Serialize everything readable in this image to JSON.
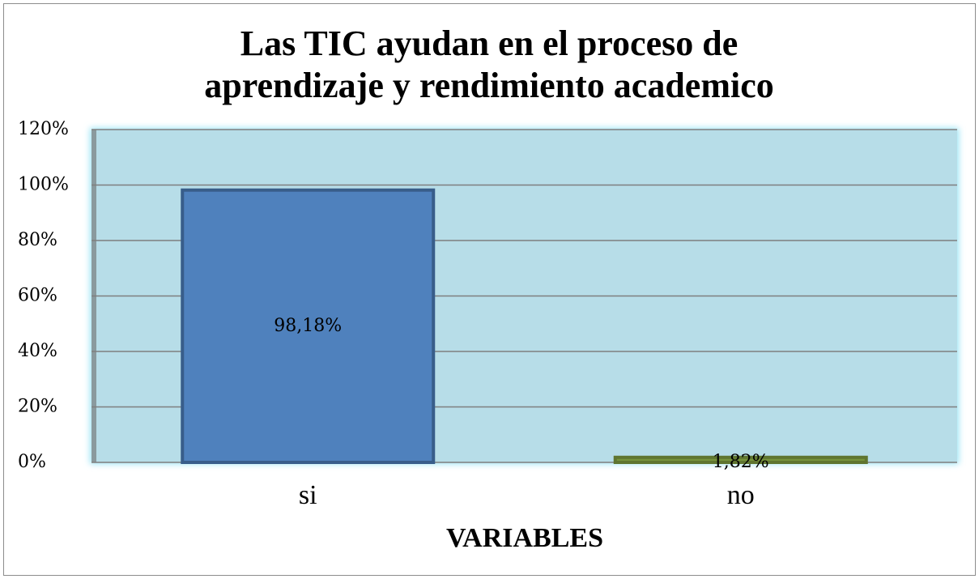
{
  "chart_data": {
    "type": "bar",
    "title": "Las TIC ayudan en el proceso de aprendizaje y rendimiento academico",
    "x_label": "VARIABLES",
    "categories": [
      "si",
      "no"
    ],
    "values": [
      98.18,
      1.82
    ],
    "value_labels": [
      "98,18%",
      "1,82%"
    ],
    "colors": [
      "#4f81bd",
      "#77933c"
    ],
    "ylim": [
      0,
      120
    ],
    "yticks": [
      {
        "value": 0,
        "label": "0%"
      },
      {
        "value": 20,
        "label": "20%"
      },
      {
        "value": 40,
        "label": "40%"
      },
      {
        "value": 60,
        "label": "60%"
      },
      {
        "value": 80,
        "label": "80%"
      },
      {
        "value": 100,
        "label": "100%"
      },
      {
        "value": 120,
        "label": "120%"
      }
    ],
    "grid": true
  }
}
